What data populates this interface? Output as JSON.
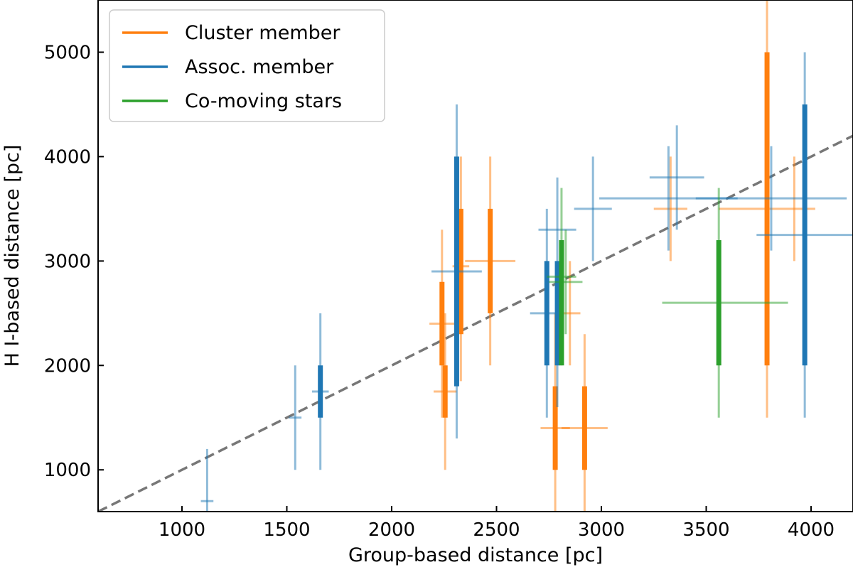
{
  "chart_data": {
    "type": "scatter",
    "title": "",
    "xlabel": "Group-based distance [pc]",
    "ylabel": "H I-based distance [pc]",
    "xlim": [
      600,
      4200
    ],
    "ylim": [
      600,
      5500
    ],
    "xticks": [
      1000,
      1500,
      2000,
      2500,
      3000,
      3500,
      4000
    ],
    "yticks": [
      1000,
      2000,
      3000,
      4000,
      5000
    ],
    "grid": false,
    "legend_position": "upper-left",
    "reference_line": {
      "style": "dashed",
      "color": "#777777",
      "points": [
        [
          600,
          600
        ],
        [
          4200,
          4200
        ]
      ]
    },
    "series": [
      {
        "name": "Cluster member",
        "color": "#ff7f0e",
        "points": [
          {
            "x": 2240,
            "y": 2400,
            "xerr": [
              60,
              60
            ],
            "y_inner": [
              2000,
              2800
            ],
            "y_outer": [
              1500,
              3300
            ]
          },
          {
            "x": 2255,
            "y": 1750,
            "xerr": [
              55,
              55
            ],
            "y_inner": [
              1500,
              2000
            ],
            "y_outer": [
              1000,
              2500
            ]
          },
          {
            "x": 2330,
            "y": 2950,
            "xerr": [
              40,
              40
            ],
            "y_inner": [
              2300,
              3500
            ],
            "y_outer": [
              1850,
              4000
            ]
          },
          {
            "x": 2470,
            "y": 3000,
            "xerr": [
              120,
              120
            ],
            "y_inner": [
              2500,
              3500
            ],
            "y_outer": [
              2000,
              4000
            ]
          },
          {
            "x": 2780,
            "y": 1400,
            "xerr": [
              70,
              70
            ],
            "y_inner": [
              1000,
              1800
            ],
            "y_outer": [
              450,
              2500
            ]
          },
          {
            "x": 2850,
            "y": 2500,
            "xerr": [
              50,
              50
            ],
            "y_inner": [
              2500,
              2500
            ],
            "y_outer": [
              2000,
              3000
            ]
          },
          {
            "x": 2920,
            "y": 1400,
            "xerr": [
              110,
              110
            ],
            "y_inner": [
              1000,
              1800
            ],
            "y_outer": [
              500,
              2300
            ]
          },
          {
            "x": 3330,
            "y": 3500,
            "xerr": [
              80,
              80
            ],
            "y_inner": [
              3500,
              3500
            ],
            "y_outer": [
              3000,
              4000
            ]
          },
          {
            "x": 3790,
            "y": 3500,
            "xerr": [
              230,
              230
            ],
            "y_inner": [
              2000,
              5000
            ],
            "y_outer": [
              1500,
              5500
            ]
          },
          {
            "x": 3920,
            "y": 3500,
            "xerr": [
              0,
              0
            ],
            "y_inner": [
              3500,
              3500
            ],
            "y_outer": [
              3000,
              4000
            ]
          }
        ]
      },
      {
        "name": "Assoc. member",
        "color": "#1f77b4",
        "points": [
          {
            "x": 1120,
            "y": 700,
            "xerr": [
              30,
              30
            ],
            "y_inner": [
              700,
              700
            ],
            "y_outer": [
              200,
              1200
            ]
          },
          {
            "x": 1540,
            "y": 1500,
            "xerr": [
              30,
              30
            ],
            "y_inner": [
              1500,
              1500
            ],
            "y_outer": [
              1000,
              2000
            ]
          },
          {
            "x": 1660,
            "y": 1750,
            "xerr": [
              40,
              40
            ],
            "y_inner": [
              1500,
              2000
            ],
            "y_outer": [
              1000,
              2500
            ]
          },
          {
            "x": 2310,
            "y": 2900,
            "xerr": [
              120,
              120
            ],
            "y_inner": [
              1800,
              4000
            ],
            "y_outer": [
              1300,
              4500
            ]
          },
          {
            "x": 2740,
            "y": 2500,
            "xerr": [
              80,
              80
            ],
            "y_inner": [
              2000,
              3000
            ],
            "y_outer": [
              1500,
              3500
            ]
          },
          {
            "x": 2790,
            "y": 3300,
            "xerr": [
              90,
              90
            ],
            "y_inner": [
              2000,
              3000
            ],
            "y_outer": [
              1600,
              3800
            ]
          },
          {
            "x": 2960,
            "y": 3500,
            "xerr": [
              90,
              90
            ],
            "y_inner": [
              3500,
              3500
            ],
            "y_outer": [
              3000,
              4000
            ]
          },
          {
            "x": 3360,
            "y": 3800,
            "xerr": [
              130,
              130
            ],
            "y_inner": [
              3800,
              3800
            ],
            "y_outer": [
              3300,
              4300
            ]
          },
          {
            "x": 3320,
            "y": 3600,
            "xerr": [
              330,
              330
            ],
            "y_inner": [
              3600,
              3600
            ],
            "y_outer": [
              3100,
              4100
            ]
          },
          {
            "x": 3810,
            "y": 3600,
            "xerr": [
              360,
              360
            ],
            "y_inner": [
              3600,
              3600
            ],
            "y_outer": [
              3100,
              4100
            ]
          },
          {
            "x": 3970,
            "y": 3250,
            "xerr": [
              230,
              230
            ],
            "y_inner": [
              2000,
              4500
            ],
            "y_outer": [
              1500,
              5000
            ]
          }
        ]
      },
      {
        "name": "Co-moving stars",
        "color": "#2ca02c",
        "points": [
          {
            "x": 2810,
            "y": 2850,
            "xerr": [
              70,
              70
            ],
            "y_inner": [
              2000,
              3200
            ],
            "y_outer": [
              2000,
              3700
            ]
          },
          {
            "x": 2830,
            "y": 2800,
            "xerr": [
              80,
              80
            ],
            "y_inner": [
              2800,
              2800
            ],
            "y_outer": [
              2300,
              3300
            ]
          },
          {
            "x": 3560,
            "y": 2600,
            "xerr": [
              270,
              330
            ],
            "y_inner": [
              2000,
              3200
            ],
            "y_outer": [
              1500,
              3700
            ]
          }
        ]
      }
    ]
  }
}
